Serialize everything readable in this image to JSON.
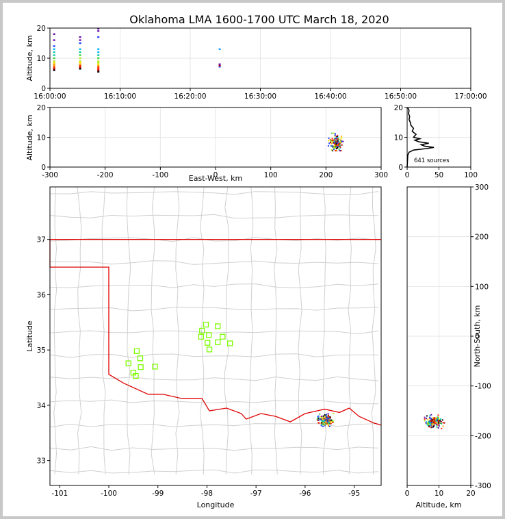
{
  "title": "Oklahoma LMA 1600-1700 UTC March 18, 2020",
  "chart_data": [
    {
      "id": "time_altitude",
      "type": "scatter",
      "ylabel": "Altitude, km",
      "xlabel": "",
      "xlim": [
        0,
        60
      ],
      "ylim": [
        0,
        20
      ],
      "xticks": [
        {
          "v": 0,
          "label": "16:00:00"
        },
        {
          "v": 10,
          "label": "16:10:00"
        },
        {
          "v": 20,
          "label": "16:20:00"
        },
        {
          "v": 30,
          "label": "16:30:00"
        },
        {
          "v": 40,
          "label": "16:40:00"
        },
        {
          "v": 50,
          "label": "16:50:00"
        },
        {
          "v": 60,
          "label": "17:00:00"
        }
      ],
      "yticks": [
        0,
        10,
        20
      ],
      "columns": [
        {
          "t": 0.6,
          "alt": [
            6,
            6.5,
            7,
            7.5,
            8,
            8.5,
            9,
            10,
            11,
            12,
            13,
            14,
            16,
            18
          ]
        },
        {
          "t": 4.3,
          "alt": [
            6.5,
            7,
            7.5,
            8,
            8.5,
            9,
            10,
            11,
            12,
            13,
            15,
            16,
            17
          ]
        },
        {
          "t": 6.9,
          "alt": [
            5.5,
            6,
            6.5,
            7,
            7.5,
            8,
            8.5,
            9,
            10,
            11,
            12,
            13,
            17,
            19,
            19.8
          ]
        },
        {
          "t": 24.2,
          "alt": [
            7.2,
            7.6,
            8.0,
            13.0
          ]
        }
      ]
    },
    {
      "id": "ew_altitude",
      "type": "scatter",
      "xlabel": "East-West, km",
      "ylabel": "Altitude, km",
      "xlim": [
        -300,
        300
      ],
      "ylim": [
        0,
        20
      ],
      "xticks": [
        -300,
        -200,
        -100,
        0,
        100,
        200,
        300
      ],
      "yticks": [
        0,
        10,
        20
      ],
      "cluster_center": {
        "x": 218,
        "alt": 8.5
      }
    },
    {
      "id": "altitude_histogram",
      "type": "line",
      "xlim": [
        0,
        100
      ],
      "ylim": [
        0,
        20
      ],
      "xticks": [
        0,
        50,
        100
      ],
      "yticks": [
        0,
        10,
        20
      ],
      "annotation": "641 sources",
      "profile": [
        {
          "alt": 0,
          "n": 0
        },
        {
          "alt": 4,
          "n": 1
        },
        {
          "alt": 5,
          "n": 3
        },
        {
          "alt": 5.7,
          "n": 10
        },
        {
          "alt": 6.2,
          "n": 30
        },
        {
          "alt": 6.6,
          "n": 42
        },
        {
          "alt": 7.0,
          "n": 28
        },
        {
          "alt": 7.5,
          "n": 22
        },
        {
          "alt": 8.0,
          "n": 34
        },
        {
          "alt": 8.5,
          "n": 18
        },
        {
          "alt": 9.0,
          "n": 12
        },
        {
          "alt": 9.5,
          "n": 20
        },
        {
          "alt": 10.0,
          "n": 10
        },
        {
          "alt": 11.0,
          "n": 14
        },
        {
          "alt": 12.0,
          "n": 8
        },
        {
          "alt": 13.0,
          "n": 10
        },
        {
          "alt": 14.0,
          "n": 6
        },
        {
          "alt": 15.0,
          "n": 5
        },
        {
          "alt": 16.0,
          "n": 3
        },
        {
          "alt": 17.0,
          "n": 4
        },
        {
          "alt": 18.0,
          "n": 2
        },
        {
          "alt": 19.0,
          "n": 3
        },
        {
          "alt": 20.0,
          "n": 1
        }
      ]
    },
    {
      "id": "plan_view",
      "type": "scatter",
      "xlabel": "Longitude",
      "ylabel": "Latitude",
      "xlim": [
        -101.2,
        -94.45
      ],
      "ylim": [
        32.55,
        37.95
      ],
      "xticks": [
        -101,
        -100,
        -99,
        -98,
        -97,
        -96,
        -95
      ],
      "yticks": [
        33,
        34,
        35,
        36,
        37
      ],
      "stations": [
        [
          -98.02,
          35.46
        ],
        [
          -98.1,
          35.35
        ],
        [
          -98.12,
          35.24
        ],
        [
          -97.96,
          35.27
        ],
        [
          -97.78,
          35.43
        ],
        [
          -97.68,
          35.24
        ],
        [
          -97.99,
          35.13
        ],
        [
          -97.95,
          35.01
        ],
        [
          -97.78,
          35.14
        ],
        [
          -97.53,
          35.12
        ],
        [
          -99.43,
          34.98
        ],
        [
          -99.36,
          34.85
        ],
        [
          -99.6,
          34.76
        ],
        [
          -99.35,
          34.69
        ],
        [
          -99.06,
          34.7
        ],
        [
          -99.5,
          34.59
        ],
        [
          -99.45,
          34.53
        ]
      ],
      "cluster_center": {
        "lon": -95.58,
        "lat": 33.73
      }
    },
    {
      "id": "altitude_ns",
      "type": "scatter",
      "xlabel": "Altitude, km",
      "ylabel": "North-South, km",
      "xlim": [
        0,
        20
      ],
      "ylim": [
        -300,
        300
      ],
      "xticks": [
        0,
        10,
        20
      ],
      "yticks": [
        -300,
        -200,
        -100,
        0,
        100,
        200,
        300
      ],
      "cluster_center": {
        "alt": 8.5,
        "ns": -172
      }
    }
  ]
}
